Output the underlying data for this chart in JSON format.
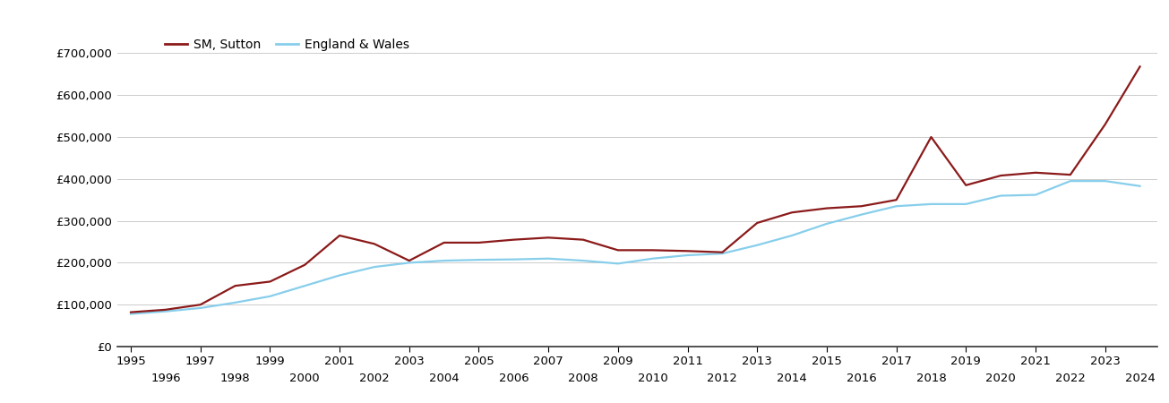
{
  "sutton_years": [
    1995,
    1996,
    1997,
    1998,
    1999,
    2000,
    2001,
    2002,
    2003,
    2004,
    2005,
    2006,
    2007,
    2008,
    2009,
    2010,
    2011,
    2012,
    2013,
    2014,
    2015,
    2016,
    2017,
    2018,
    2019,
    2020,
    2021,
    2022,
    2023,
    2024
  ],
  "sutton_values": [
    82000,
    88000,
    100000,
    145000,
    155000,
    195000,
    265000,
    245000,
    205000,
    248000,
    248000,
    255000,
    260000,
    255000,
    230000,
    230000,
    228000,
    225000,
    295000,
    320000,
    330000,
    335000,
    350000,
    500000,
    385000,
    408000,
    415000,
    410000,
    530000,
    668000
  ],
  "england_years": [
    1995,
    1996,
    1997,
    1998,
    1999,
    2000,
    2001,
    2002,
    2003,
    2004,
    2005,
    2006,
    2007,
    2008,
    2009,
    2010,
    2011,
    2012,
    2013,
    2014,
    2015,
    2016,
    2017,
    2018,
    2019,
    2020,
    2021,
    2022,
    2023,
    2024
  ],
  "england_values": [
    78000,
    84000,
    92000,
    105000,
    120000,
    145000,
    170000,
    190000,
    200000,
    205000,
    207000,
    208000,
    210000,
    205000,
    198000,
    210000,
    218000,
    222000,
    242000,
    265000,
    293000,
    315000,
    335000,
    340000,
    340000,
    360000,
    362000,
    395000,
    395000,
    383000
  ],
  "sutton_color": "#8B1A1A",
  "england_color": "#87CEEB",
  "sutton_label": "SM, Sutton",
  "england_label": "England & Wales",
  "ylim": [
    0,
    750000
  ],
  "yticks": [
    0,
    100000,
    200000,
    300000,
    400000,
    500000,
    600000,
    700000
  ],
  "ytick_labels": [
    "£0",
    "£100,000",
    "£200,000",
    "£300,000",
    "£400,000",
    "£500,000",
    "£600,000",
    "£700,000"
  ],
  "xticks_top": [
    1995,
    1997,
    1999,
    2001,
    2003,
    2005,
    2007,
    2009,
    2011,
    2013,
    2015,
    2017,
    2019,
    2021,
    2023
  ],
  "xticks_bottom": [
    1996,
    1998,
    2000,
    2002,
    2004,
    2006,
    2008,
    2010,
    2012,
    2014,
    2016,
    2018,
    2020,
    2022,
    2024
  ],
  "background_color": "#ffffff",
  "grid_color": "#cccccc",
  "line_width": 1.6,
  "legend_fontsize": 10,
  "tick_fontsize": 9.5,
  "xlim_left": 1994.6,
  "xlim_right": 2024.5
}
